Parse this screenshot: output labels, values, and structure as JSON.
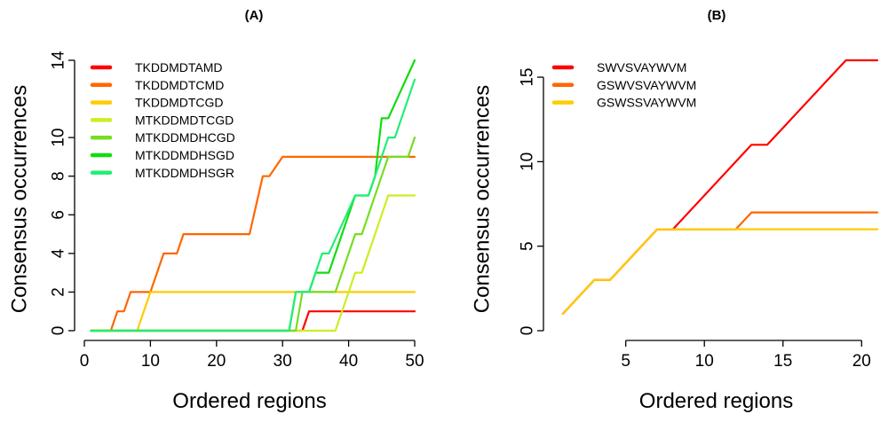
{
  "chart_data": [
    {
      "type": "line",
      "title": "(A)",
      "xlabel": "Ordered regions",
      "ylabel": "Consensus occurrences",
      "xlim": [
        0,
        50
      ],
      "ylim": [
        0,
        14
      ],
      "xticks": [
        0,
        10,
        20,
        30,
        40,
        50
      ],
      "yticks": [
        0,
        2,
        4,
        6,
        8,
        10,
        14
      ],
      "grid": false,
      "legend_position": "top-left",
      "series": [
        {
          "name": "TKDDMDTAMD",
          "color": "#ff0000",
          "x": [
            1,
            33,
            34,
            50
          ],
          "y": [
            0,
            0,
            1,
            1
          ]
        },
        {
          "name": "TKDDMDTCMD",
          "color": "#ff6600",
          "x": [
            1,
            4,
            5,
            6,
            7,
            9,
            10,
            12,
            13,
            14,
            15,
            25,
            27,
            28,
            30,
            50
          ],
          "y": [
            0,
            0,
            1,
            1,
            2,
            2,
            2,
            4,
            4,
            4,
            5,
            5,
            8,
            8,
            9,
            9
          ]
        },
        {
          "name": "TKDDMDTCGD",
          "color": "#ffcc00",
          "x": [
            1,
            8,
            10,
            50
          ],
          "y": [
            0,
            0,
            2,
            2
          ]
        },
        {
          "name": "MTKDDMDTCGD",
          "color": "#ccee22",
          "x": [
            1,
            38,
            40,
            41,
            42,
            46,
            47,
            50
          ],
          "y": [
            0,
            0,
            2,
            3,
            3,
            7,
            7,
            7
          ]
        },
        {
          "name": "MTKDDMDHCGD",
          "color": "#77dd22",
          "x": [
            1,
            32,
            33,
            38,
            40,
            41,
            42,
            46,
            48,
            49,
            50
          ],
          "y": [
            0,
            0,
            2,
            2,
            4,
            5,
            5,
            9,
            9,
            9,
            10
          ]
        },
        {
          "name": "MTKDDMDHSGD",
          "color": "#11dd11",
          "x": [
            1,
            31,
            32,
            34,
            35,
            36,
            37,
            41,
            42,
            43,
            44,
            45,
            46,
            50
          ],
          "y": [
            0,
            0,
            2,
            2,
            3,
            3,
            3,
            7,
            7,
            7,
            8,
            11,
            11,
            14
          ]
        },
        {
          "name": "MTKDDMDHSGR",
          "color": "#22ee77",
          "x": [
            1,
            31,
            32,
            34,
            35,
            36,
            37,
            41,
            42,
            43,
            44,
            46,
            47,
            50
          ],
          "y": [
            0,
            0,
            2,
            2,
            3,
            4,
            4,
            7,
            7,
            7,
            8,
            10,
            10,
            13
          ]
        }
      ]
    },
    {
      "type": "line",
      "title": "(B)",
      "xlabel": "Ordered regions",
      "ylabel": "Consensus occurrences",
      "xlim": [
        0.5,
        21
      ],
      "ylim": [
        0,
        16
      ],
      "xticks": [
        5,
        10,
        15,
        20
      ],
      "yticks": [
        0,
        5,
        10,
        15
      ],
      "grid": false,
      "legend_position": "top-left",
      "series": [
        {
          "name": "SWVSVAYWVM",
          "color": "#ff0000",
          "x": [
            1,
            3,
            4,
            7,
            8,
            13,
            14,
            19,
            21
          ],
          "y": [
            1,
            3,
            3,
            6,
            6,
            11,
            11,
            16,
            16
          ]
        },
        {
          "name": "GSWVSVAYWVM",
          "color": "#ff6600",
          "x": [
            1,
            3,
            4,
            7,
            12,
            13,
            21
          ],
          "y": [
            1,
            3,
            3,
            6,
            6,
            7,
            7
          ]
        },
        {
          "name": "GSWSSVAYWVM",
          "color": "#ffcc00",
          "x": [
            1,
            3,
            4,
            7,
            21
          ],
          "y": [
            1,
            3,
            3,
            6,
            6
          ]
        }
      ]
    }
  ]
}
